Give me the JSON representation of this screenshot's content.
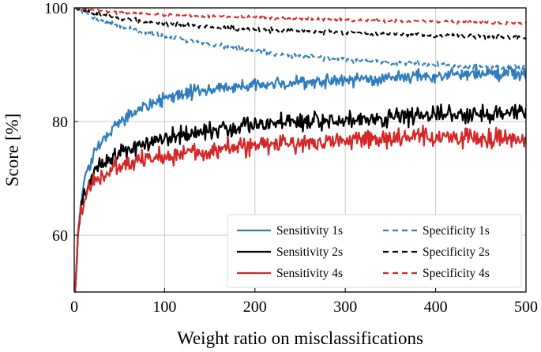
{
  "chart_data": {
    "type": "line",
    "title": "",
    "xlabel": "Weight ratio on misclassifications",
    "ylabel": "Score [%]",
    "xlim": [
      0,
      500
    ],
    "ylim": [
      50,
      100
    ],
    "xticks": [
      0,
      100,
      200,
      300,
      400,
      500
    ],
    "yticks": [
      60,
      80,
      100
    ],
    "grid": true,
    "legend_position": "bottom-right",
    "series": [
      {
        "name": "Sensitivity 1s",
        "color": "#2f7dbc",
        "style": "solid",
        "noise": 0.9,
        "x": [
          1,
          5,
          10,
          15,
          20,
          30,
          40,
          50,
          75,
          100,
          150,
          200,
          250,
          300,
          350,
          400,
          450,
          500
        ],
        "y": [
          50,
          62,
          68.5,
          71.5,
          73.5,
          76.5,
          78.5,
          80,
          82.5,
          84,
          85.7,
          86.3,
          86.9,
          87.3,
          87.7,
          88,
          88.4,
          88.4
        ]
      },
      {
        "name": "Sensitivity 2s",
        "color": "#000000",
        "style": "solid",
        "noise": 1.2,
        "x": [
          1,
          5,
          10,
          15,
          20,
          30,
          40,
          50,
          75,
          100,
          150,
          200,
          250,
          300,
          350,
          400,
          450,
          500
        ],
        "y": [
          50,
          62,
          67,
          69,
          70.5,
          72.5,
          73.5,
          74.5,
          76,
          77,
          78.5,
          79.5,
          80,
          80.3,
          80.7,
          81,
          81.5,
          81.7
        ]
      },
      {
        "name": "Sensitivity 4s",
        "color": "#d62728",
        "style": "solid",
        "noise": 1.3,
        "x": [
          1,
          5,
          10,
          15,
          20,
          30,
          40,
          50,
          75,
          100,
          150,
          200,
          250,
          300,
          350,
          400,
          450,
          500
        ],
        "y": [
          50,
          62,
          66,
          68,
          69,
          70.5,
          71.3,
          72,
          73.2,
          74,
          75,
          75.7,
          76.3,
          76.7,
          77,
          77.2,
          77.1,
          77
        ]
      },
      {
        "name": "Specificity 1s",
        "color": "#2f7dbc",
        "style": "dashed",
        "noise": 0.35,
        "x": [
          1,
          10,
          25,
          50,
          75,
          100,
          150,
          200,
          250,
          300,
          350,
          400,
          450,
          500
        ],
        "y": [
          100,
          99.2,
          98,
          96.8,
          95.8,
          95,
          93.6,
          92.4,
          91.5,
          90.9,
          90.4,
          90,
          89.6,
          89.4
        ]
      },
      {
        "name": "Specificity 2s",
        "color": "#000000",
        "style": "dashed",
        "noise": 0.3,
        "x": [
          1,
          10,
          25,
          50,
          75,
          100,
          150,
          200,
          250,
          300,
          350,
          400,
          450,
          500
        ],
        "y": [
          100,
          99.5,
          98.9,
          98.2,
          97.7,
          97.2,
          96.6,
          96.2,
          95.9,
          95.6,
          95.4,
          95.2,
          95.0,
          94.8
        ]
      },
      {
        "name": "Specificity 4s",
        "color": "#d62728",
        "style": "dashed",
        "noise": 0.2,
        "x": [
          1,
          10,
          25,
          50,
          75,
          100,
          150,
          200,
          250,
          300,
          350,
          400,
          450,
          500
        ],
        "y": [
          100,
          99.8,
          99.5,
          99.2,
          99,
          98.8,
          98.5,
          98.3,
          98.1,
          97.9,
          97.7,
          97.6,
          97.4,
          97.3
        ]
      }
    ]
  }
}
